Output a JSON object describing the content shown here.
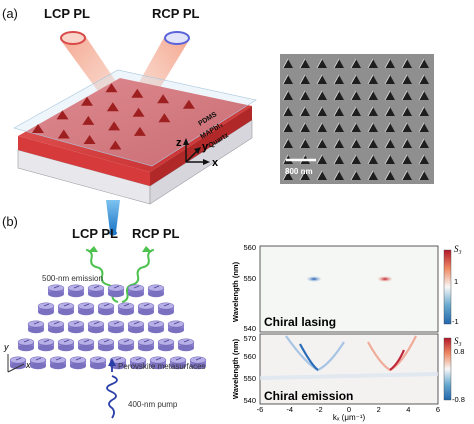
{
  "panel_a": {
    "label": "(a)",
    "lcp_label": "LCP PL",
    "rcp_label": "RCP PL",
    "layers": [
      "PDMS",
      "MAPbI₃",
      "Quartz"
    ],
    "axes": {
      "z": "z",
      "y": "y",
      "x": "x"
    },
    "sem_scale": "800 nm"
  },
  "panel_b": {
    "label": "(b)",
    "lcp_label": "LCP PL",
    "rcp_label": "RCP PL",
    "emission_label": "500-nm emission",
    "metasurface_label": "Perovskite metasurfaces",
    "pump_label": "400-nm pump",
    "axes": {
      "y": "y",
      "x": "x"
    }
  },
  "plots": {
    "top": {
      "title": "Chiral lasing",
      "ylabel": "Wavelength (nm)",
      "yticks": [
        "560",
        "550",
        "540"
      ],
      "colorbar": {
        "label": "S₃",
        "max": "1",
        "min": "-1"
      }
    },
    "bottom": {
      "title": "Chiral emission",
      "ylabel": "Wavelength (nm)",
      "yticks": [
        "570",
        "560",
        "550",
        "540"
      ],
      "xticks": [
        "-6",
        "-4",
        "-2",
        "0",
        "2",
        "4",
        "6"
      ],
      "xlabel": "kₓ (μm⁻¹)",
      "colorbar": {
        "label": "S₃",
        "max": "0.8",
        "min": "-0.8"
      }
    }
  }
}
